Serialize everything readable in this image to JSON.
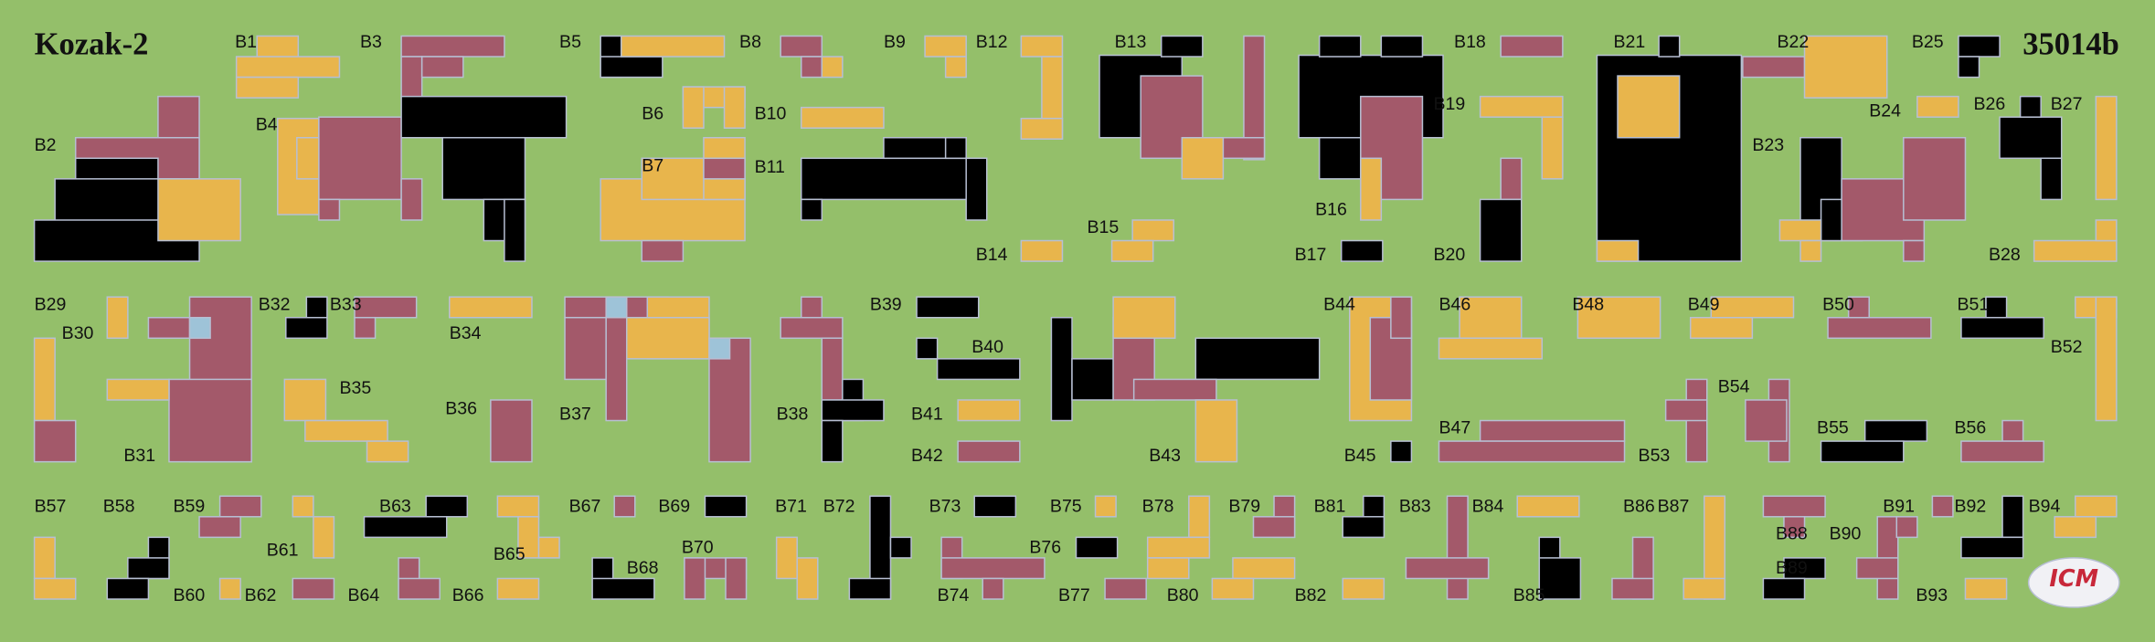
{
  "header": {
    "title": "Kozak-2",
    "code": "35014b"
  },
  "labels": [
    "B1",
    "B2",
    "B3",
    "B4",
    "B5",
    "B6",
    "B7",
    "B8",
    "B9",
    "B10",
    "B11",
    "B12",
    "B13",
    "B14",
    "B15",
    "B16",
    "B17",
    "B18",
    "B19",
    "B20",
    "B21",
    "B22",
    "B23",
    "B24",
    "B25",
    "B26",
    "B27",
    "B28",
    "B29",
    "B30",
    "B31",
    "B32",
    "B33",
    "B34",
    "B35",
    "B36",
    "B37",
    "B38",
    "B39",
    "B40",
    "B41",
    "B42",
    "B43",
    "B44",
    "B45",
    "B46",
    "B47",
    "B48",
    "B49",
    "B50",
    "B51",
    "B52",
    "B53",
    "B54",
    "B55",
    "B56",
    "B57",
    "B58",
    "B59",
    "B60",
    "B61",
    "B62",
    "B63",
    "B64",
    "B65",
    "B66",
    "B67",
    "B68",
    "B69",
    "B70",
    "B71",
    "B72",
    "B73",
    "B74",
    "B75",
    "B76",
    "B77",
    "B78",
    "B79",
    "B80",
    "B81",
    "B82",
    "B83",
    "B84",
    "B85",
    "B86",
    "B87",
    "B88",
    "B89",
    "B90",
    "B91",
    "B92",
    "B93",
    "B94"
  ],
  "logo": {
    "text": "ICM"
  }
}
